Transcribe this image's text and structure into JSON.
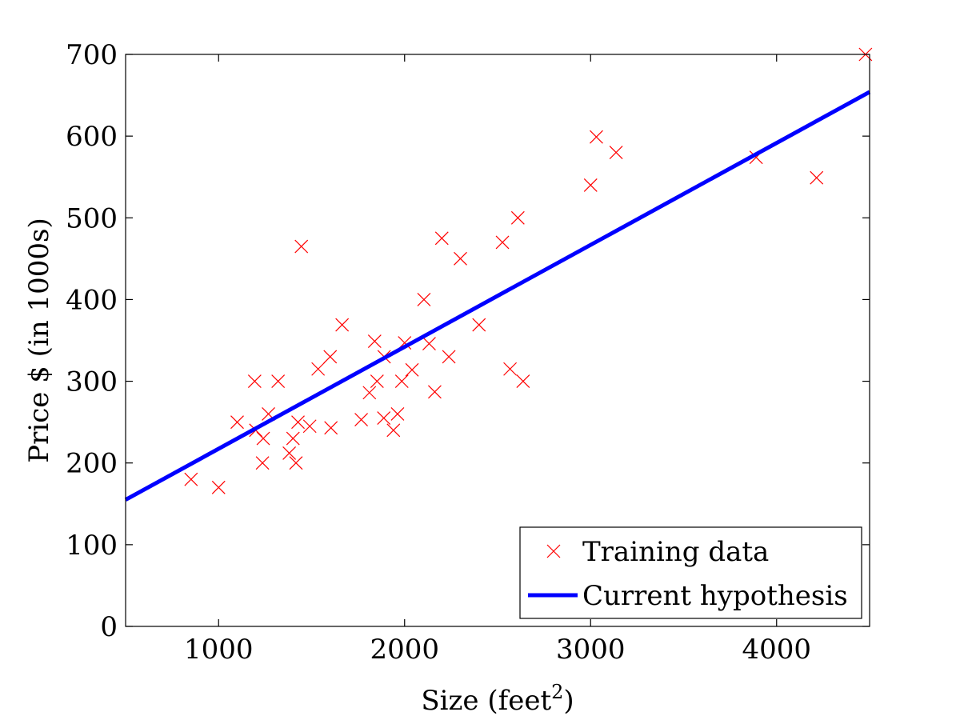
{
  "chart_data": {
    "type": "scatter",
    "title": "",
    "xlabel": "Size (feet",
    "xlabel_superscript": "2",
    "xlabel_suffix": ")",
    "ylabel": "Price $ (in 1000s)",
    "xlim": [
      500,
      4500
    ],
    "ylim": [
      0,
      700
    ],
    "xticks": [
      1000,
      2000,
      3000,
      4000
    ],
    "yticks": [
      0,
      100,
      200,
      300,
      400,
      500,
      600,
      700
    ],
    "xtick_labels": [
      "1000",
      "2000",
      "3000",
      "4000"
    ],
    "ytick_labels": [
      "0",
      "100",
      "200",
      "300",
      "400",
      "500",
      "600",
      "700"
    ],
    "grid": false,
    "legend_position": "bottom-right",
    "series": [
      {
        "name": "Training data",
        "kind": "scatter",
        "marker": "x",
        "color": "#ff0000",
        "points": [
          [
            852,
            180
          ],
          [
            1000,
            170
          ],
          [
            1100,
            250
          ],
          [
            1194,
            300
          ],
          [
            1200,
            240
          ],
          [
            1236,
            200
          ],
          [
            1240,
            230
          ],
          [
            1268,
            260
          ],
          [
            1320,
            300
          ],
          [
            1380,
            212
          ],
          [
            1400,
            230
          ],
          [
            1416,
            200
          ],
          [
            1427,
            250
          ],
          [
            1445,
            465
          ],
          [
            1490,
            245
          ],
          [
            1535,
            315
          ],
          [
            1600,
            330
          ],
          [
            1604,
            243
          ],
          [
            1664,
            369
          ],
          [
            1767,
            253
          ],
          [
            1811,
            286
          ],
          [
            1839,
            349
          ],
          [
            1852,
            300
          ],
          [
            1888,
            255
          ],
          [
            1890,
            330
          ],
          [
            1940,
            240
          ],
          [
            1962,
            260
          ],
          [
            1985,
            300
          ],
          [
            2000,
            347
          ],
          [
            2040,
            314
          ],
          [
            2104,
            400
          ],
          [
            2132,
            346
          ],
          [
            2162,
            287
          ],
          [
            2200,
            475
          ],
          [
            2238,
            330
          ],
          [
            2300,
            450
          ],
          [
            2400,
            369
          ],
          [
            2526,
            470
          ],
          [
            2567,
            315
          ],
          [
            2609,
            500
          ],
          [
            2637,
            300
          ],
          [
            3000,
            540
          ],
          [
            3031,
            599
          ],
          [
            3137,
            580
          ],
          [
            3890,
            574
          ],
          [
            4215,
            549
          ],
          [
            4478,
            700
          ]
        ]
      },
      {
        "name": "Current hypothesis",
        "kind": "line",
        "color": "#0000ff",
        "points": [
          [
            500,
            155
          ],
          [
            4500,
            654
          ]
        ]
      }
    ]
  }
}
